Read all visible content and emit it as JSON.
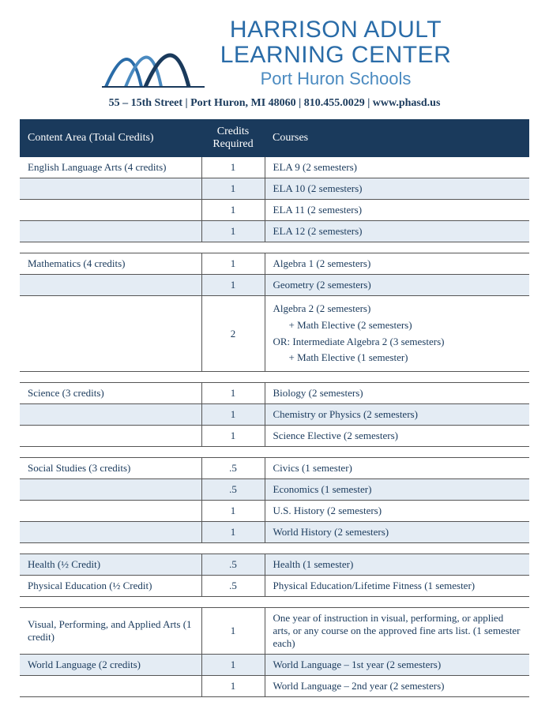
{
  "header": {
    "title_line1": "HARRISON ADULT",
    "title_line2": "LEARNING CENTER",
    "subtitle": "Port Huron Schools",
    "contact": "55 – 15th Street  |  Port Huron, MI 48060  |  810.455.0029  |  www.phasd.us"
  },
  "table": {
    "headers": {
      "area": "Content Area (Total Credits)",
      "credits": "Credits Required",
      "courses": "Courses"
    },
    "sections": [
      {
        "area": "English Language Arts (4 credits)",
        "rows": [
          {
            "credits": "1",
            "course": "ELA 9 (2 semesters)",
            "alt": false
          },
          {
            "credits": "1",
            "course": "ELA 10 (2 semesters)",
            "alt": true
          },
          {
            "credits": "1",
            "course": "ELA 11 (2 semesters)",
            "alt": false
          },
          {
            "credits": "1",
            "course": "ELA 12 (2 semesters)",
            "alt": true
          }
        ]
      },
      {
        "area": "Mathematics (4 credits)",
        "rows": [
          {
            "credits": "1",
            "course": "Algebra 1 (2 semesters)",
            "alt": false
          },
          {
            "credits": "1",
            "course": "Geometry (2 semesters)",
            "alt": true
          },
          {
            "credits": "2",
            "course_multi": [
              "Algebra 2 (2 semesters)",
              "+ Math Elective (2 semesters)",
              "OR: Intermediate Algebra 2 (3 semesters)",
              "+ Math Elective (1 semester)"
            ],
            "alt": false
          }
        ]
      },
      {
        "area": "Science (3 credits)",
        "rows": [
          {
            "credits": "1",
            "course": "Biology (2 semesters)",
            "alt": false
          },
          {
            "credits": "1",
            "course": "Chemistry or Physics (2 semesters)",
            "alt": true
          },
          {
            "credits": "1",
            "course": "Science Elective (2 semesters)",
            "alt": false
          }
        ]
      },
      {
        "area": "Social Studies (3 credits)",
        "rows": [
          {
            "credits": ".5",
            "course": "Civics (1 semester)",
            "alt": false
          },
          {
            "credits": ".5",
            "course": "Economics (1 semester)",
            "alt": true
          },
          {
            "credits": "1",
            "course": "U.S. History (2 semesters)",
            "alt": false
          },
          {
            "credits": "1",
            "course": "World History (2 semesters)",
            "alt": true
          }
        ]
      },
      {
        "rows": [
          {
            "area": "Health (½ Credit)",
            "credits": ".5",
            "course": "Health (1 semester)",
            "alt": true
          },
          {
            "area": "Physical Education (½ Credit)",
            "credits": ".5",
            "course": "Physical Education/Lifetime Fitness (1 semester)",
            "alt": false
          }
        ]
      },
      {
        "rows": [
          {
            "area": "Visual, Performing, and Applied Arts (1 credit)",
            "credits": "1",
            "course": "One year of instruction in visual, performing, or applied arts, or any course on the approved fine arts list. (1 semester each)",
            "alt": false
          },
          {
            "area": "World Language (2 credits)",
            "credits": "1",
            "course": "World Language – 1st year (2 semesters)",
            "alt": true
          },
          {
            "area": "",
            "credits": "1",
            "course": "World Language – 2nd year (2 semesters)",
            "alt": false
          }
        ]
      }
    ]
  }
}
